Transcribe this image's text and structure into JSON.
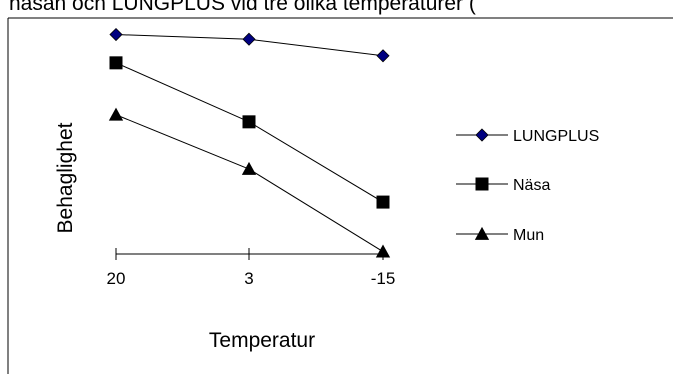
{
  "chart_data": {
    "type": "line",
    "title": "näsan och LUNGPLUS vid tre olika temperaturer (",
    "xlabel": "Temperatur",
    "ylabel": "Behaglighet",
    "categories": [
      "20",
      "3",
      "-15"
    ],
    "ylim": [
      0,
      10
    ],
    "grid": false,
    "legend_position": "right",
    "series": [
      {
        "name": "LUNGPLUS",
        "values": [
          9.3,
          9.1,
          8.4
        ],
        "marker": "diamond",
        "color": "#000080"
      },
      {
        "name": "Näsa",
        "values": [
          8.1,
          5.6,
          2.2
        ],
        "marker": "square",
        "color": "#000000"
      },
      {
        "name": "Mun",
        "values": [
          5.9,
          3.6,
          0.1
        ],
        "marker": "triangle",
        "color": "#000000"
      }
    ]
  }
}
